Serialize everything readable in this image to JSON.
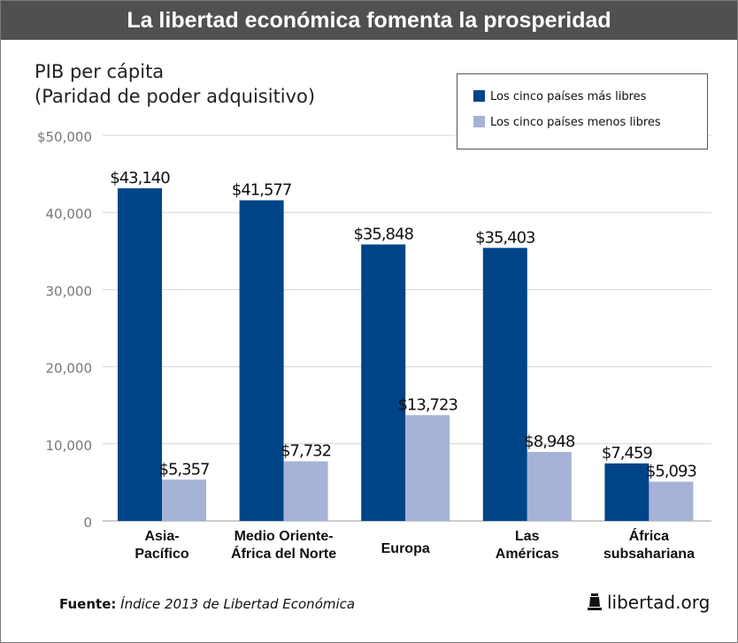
{
  "header": {
    "title": "La libertad económica fomenta la prosperidad"
  },
  "subtitle": {
    "line1": "PIB per cápita",
    "line2": "(Paridad de poder adquisitivo)"
  },
  "legend": {
    "free": "Los cinco países más libres",
    "unfree": "Los cinco países menos libres"
  },
  "colors": {
    "free": "#004488",
    "unfree": "#a6b3d6",
    "grid": "#d4d4d4",
    "header_bg": "#505050"
  },
  "chart_data": {
    "type": "bar",
    "title": "La libertad económica fomenta la prosperidad",
    "ylabel": "PIB per cápita (Paridad de poder adquisitivo)",
    "xlabel": "",
    "ylim": [
      0,
      50000
    ],
    "yticks": [
      0,
      10000,
      20000,
      30000,
      40000,
      50000
    ],
    "ytick_labels": [
      "0",
      "10,000",
      "20,000",
      "30,000",
      "40,000",
      "$50,000"
    ],
    "grid": true,
    "legend_position": "top-right",
    "categories": [
      [
        "Asia-",
        "Pacífico"
      ],
      [
        "Medio Oriente-",
        "África del Norte"
      ],
      [
        "Europa"
      ],
      [
        "Las",
        "Américas"
      ],
      [
        "África",
        "subsahariana"
      ]
    ],
    "series": [
      {
        "name": "Los cinco países más libres",
        "values": [
          43140,
          41577,
          35848,
          35403,
          7459
        ],
        "labels": [
          "$43,140",
          "$41,577",
          "$35,848",
          "$35,403",
          "$7,459"
        ]
      },
      {
        "name": "Los cinco países menos libres",
        "values": [
          5357,
          7732,
          13723,
          8948,
          5093
        ],
        "labels": [
          "$5,357",
          "$7,732",
          "$13,723",
          "$8,948",
          "$5,093"
        ]
      }
    ]
  },
  "footer": {
    "source_label": "Fuente:",
    "source_text": "Índice 2013 de Libertad Económica",
    "brand": "libertad.org",
    "brand_icon": "bell-icon"
  }
}
